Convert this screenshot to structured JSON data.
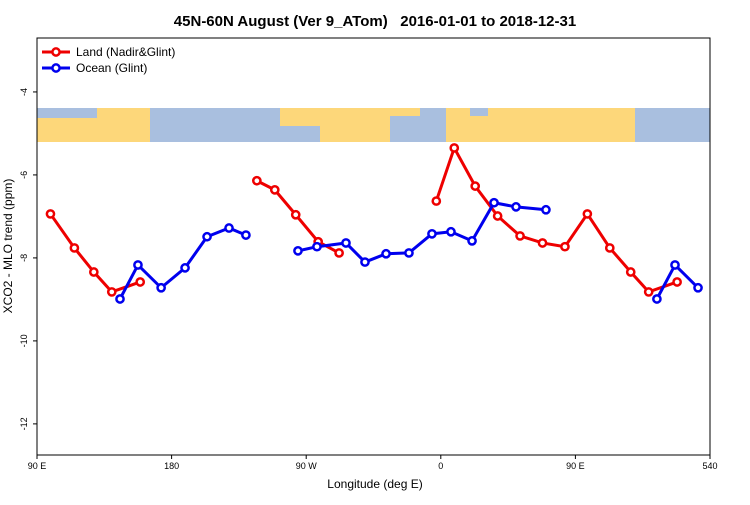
{
  "chart_data": {
    "type": "line",
    "title": "45N-60N August (Ver 9_ATom)   2016-01-01 to 2018-12-31",
    "x_label": "Longitude (deg E)",
    "y_label": "XCO2 - MLO trend (ppm)",
    "xlim": [
      90,
      540
    ],
    "xticks": [
      {
        "value": 90,
        "label": "90 E"
      },
      180,
      {
        "value": 270,
        "label": "90 W"
      },
      {
        "value": 360,
        "label": "0"
      },
      {
        "value": 450,
        "label": "90 E"
      },
      540
    ],
    "ylim": [
      -12.75,
      -2.7
    ],
    "yticks": [
      -4,
      -6,
      -8,
      -10,
      -12
    ],
    "legend": "upper left",
    "series": [
      {
        "name": "Land (Nadir&Glint)",
        "color": "#ee0000",
        "x": [
          99,
          115,
          128,
          140,
          159,
          null,
          237,
          249,
          263,
          278,
          292,
          null,
          357,
          369,
          383,
          398,
          413,
          428,
          443,
          458,
          473,
          487,
          499,
          518
        ],
        "values": [
          -6.94,
          -7.76,
          -8.34,
          -8.82,
          -8.58,
          null,
          -6.14,
          -6.36,
          -6.96,
          -7.61,
          -7.88,
          null,
          -6.63,
          -5.35,
          -6.27,
          -6.99,
          -7.47,
          -7.64,
          -7.73,
          -6.94,
          -7.76,
          -8.34,
          -8.82,
          -8.58
        ]
      },
      {
        "name": "Ocean (Glint)",
        "color": "#0000ee",
        "x": [
          145.5,
          157.5,
          173,
          189,
          203.7,
          218.4,
          229.7,
          null,
          264.5,
          277.2,
          296.6,
          309.3,
          323.4,
          338.7,
          354.1,
          366.8,
          380.9,
          395.6,
          410.3,
          430.3,
          null,
          504.5,
          516.6,
          532
        ],
        "values": [
          -8.99,
          -8.17,
          -8.72,
          -8.24,
          -7.49,
          -7.28,
          -7.45,
          null,
          -7.83,
          -7.73,
          -7.64,
          -8.1,
          -7.9,
          -7.88,
          -7.42,
          -7.37,
          -7.59,
          -6.67,
          -6.77,
          -6.84,
          null,
          -8.99,
          -8.17,
          -8.72
        ]
      }
    ]
  }
}
